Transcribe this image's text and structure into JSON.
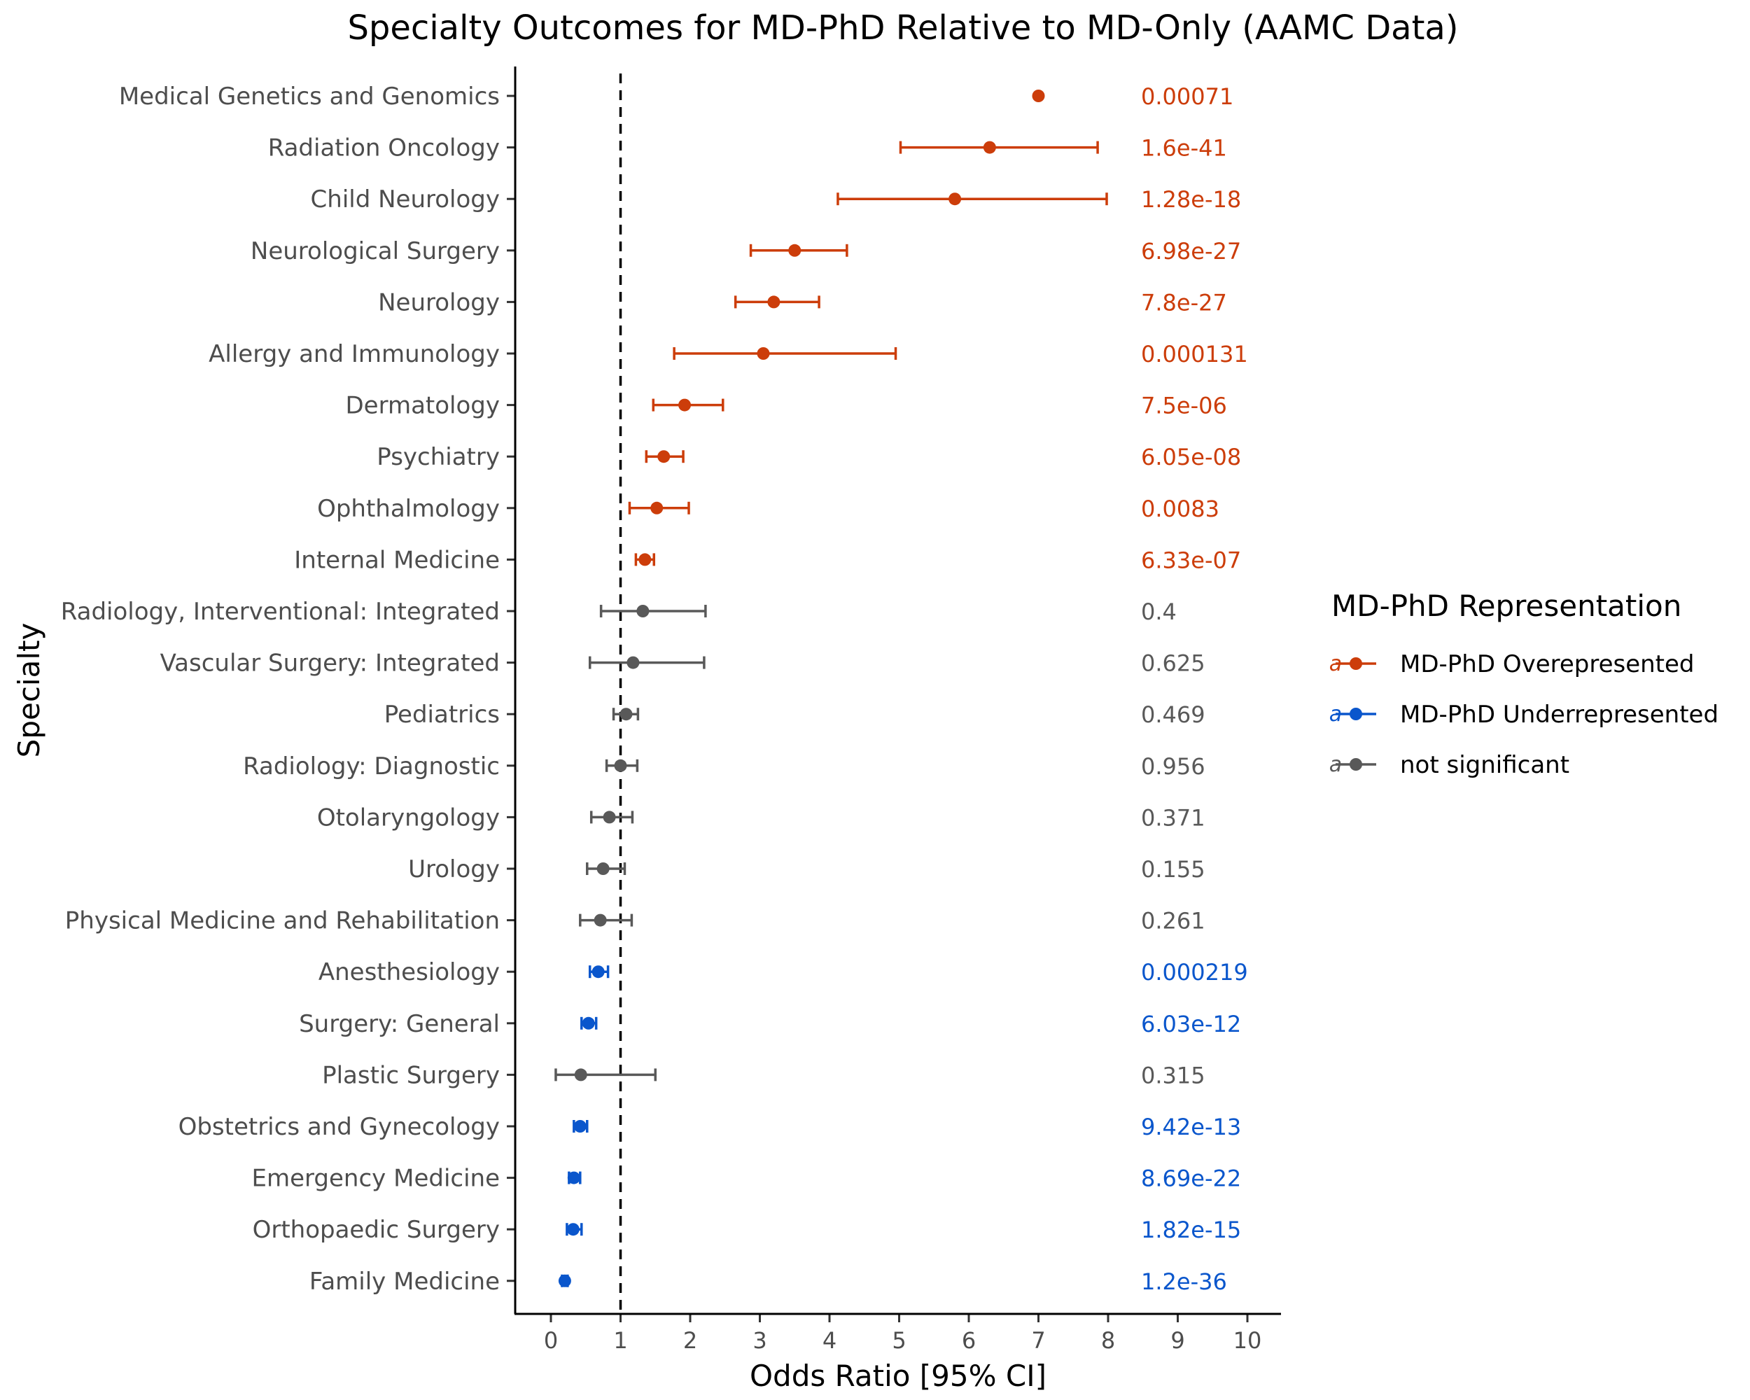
{
  "chart_data": {
    "type": "scatter",
    "title": "Specialty Outcomes for MD-PhD Relative to MD-Only (AAMC Data)",
    "xlabel": "Odds Ratio [95% CI]",
    "ylabel": "Specialty",
    "xlim": [
      -0.5,
      10.5
    ],
    "xticks": [
      "0",
      "1",
      "2",
      "3",
      "4",
      "5",
      "6",
      "7",
      "8",
      "9",
      "10"
    ],
    "reference_line": 1,
    "grid": false,
    "legend_position": "right",
    "legend": {
      "title": "MD-PhD Representation",
      "key_glyph": "a",
      "entries": [
        {
          "name": "MD-PhD Overepresented",
          "color": "#cc3d0a"
        },
        {
          "name": "MD-PhD Underrepresented",
          "color": "#0a56cc"
        },
        {
          "name": "not significant",
          "color": "#595959"
        }
      ]
    },
    "rows": [
      {
        "label": "Medical Genetics and Genomics",
        "or": 7.0,
        "lo": null,
        "hi": null,
        "p": "0.00071",
        "group": 0
      },
      {
        "label": "Radiation Oncology",
        "or": 6.3,
        "lo": 5.02,
        "hi": 7.85,
        "p": "1.6e-41",
        "group": 0
      },
      {
        "label": "Child Neurology",
        "or": 5.8,
        "lo": 4.12,
        "hi": 7.98,
        "p": "1.28e-18",
        "group": 0
      },
      {
        "label": "Neurological Surgery",
        "or": 3.5,
        "lo": 2.87,
        "hi": 4.25,
        "p": "6.98e-27",
        "group": 0
      },
      {
        "label": "Neurology",
        "or": 3.2,
        "lo": 2.65,
        "hi": 3.85,
        "p": "7.8e-27",
        "group": 0
      },
      {
        "label": "Allergy and Immunology",
        "or": 3.05,
        "lo": 1.77,
        "hi": 4.95,
        "p": "0.000131",
        "group": 0
      },
      {
        "label": "Dermatology",
        "or": 1.92,
        "lo": 1.47,
        "hi": 2.47,
        "p": "7.5e-06",
        "group": 0
      },
      {
        "label": "Psychiatry",
        "or": 1.62,
        "lo": 1.37,
        "hi": 1.9,
        "p": "6.05e-08",
        "group": 0
      },
      {
        "label": "Ophthalmology",
        "or": 1.52,
        "lo": 1.13,
        "hi": 1.98,
        "p": "0.0083",
        "group": 0
      },
      {
        "label": "Internal Medicine",
        "or": 1.35,
        "lo": 1.22,
        "hi": 1.48,
        "p": "6.33e-07",
        "group": 0
      },
      {
        "label": "Radiology, Interventional: Integrated",
        "or": 1.32,
        "lo": 0.72,
        "hi": 2.22,
        "p": "0.4",
        "group": 2
      },
      {
        "label": "Vascular Surgery: Integrated",
        "or": 1.18,
        "lo": 0.56,
        "hi": 2.2,
        "p": "0.625",
        "group": 2
      },
      {
        "label": "Pediatrics",
        "or": 1.08,
        "lo": 0.9,
        "hi": 1.25,
        "p": "0.469",
        "group": 2
      },
      {
        "label": "Radiology: Diagnostic",
        "or": 1.0,
        "lo": 0.8,
        "hi": 1.24,
        "p": "0.956",
        "group": 2
      },
      {
        "label": "Otolaryngology",
        "or": 0.84,
        "lo": 0.58,
        "hi": 1.17,
        "p": "0.371",
        "group": 2
      },
      {
        "label": "Urology",
        "or": 0.75,
        "lo": 0.52,
        "hi": 1.06,
        "p": "0.155",
        "group": 2
      },
      {
        "label": "Physical Medicine and Rehabilitation",
        "or": 0.71,
        "lo": 0.42,
        "hi": 1.16,
        "p": "0.261",
        "group": 2
      },
      {
        "label": "Anesthesiology",
        "or": 0.68,
        "lo": 0.56,
        "hi": 0.82,
        "p": "0.000219",
        "group": 1
      },
      {
        "label": "Surgery: General",
        "or": 0.54,
        "lo": 0.44,
        "hi": 0.65,
        "p": "6.03e-12",
        "group": 1
      },
      {
        "label": "Plastic Surgery",
        "or": 0.43,
        "lo": 0.07,
        "hi": 1.5,
        "p": "0.315",
        "group": 2
      },
      {
        "label": "Obstetrics and Gynecology",
        "or": 0.42,
        "lo": 0.33,
        "hi": 0.52,
        "p": "9.42e-13",
        "group": 1
      },
      {
        "label": "Emergency Medicine",
        "or": 0.33,
        "lo": 0.26,
        "hi": 0.42,
        "p": "8.69e-22",
        "group": 1
      },
      {
        "label": "Orthopaedic Surgery",
        "or": 0.32,
        "lo": 0.23,
        "hi": 0.44,
        "p": "1.82e-15",
        "group": 1
      },
      {
        "label": "Family Medicine",
        "or": 0.2,
        "lo": 0.16,
        "hi": 0.24,
        "p": "1.2e-36",
        "group": 1
      }
    ]
  }
}
